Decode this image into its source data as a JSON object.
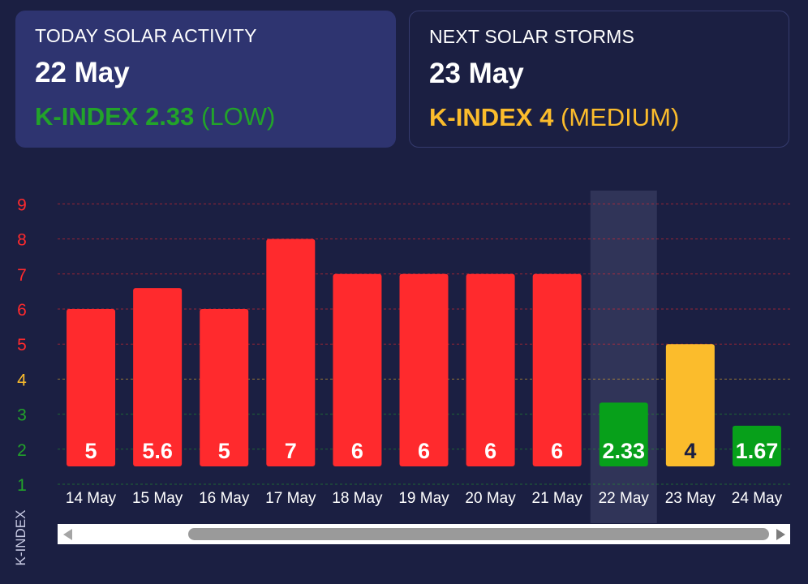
{
  "today": {
    "title": "TODAY SOLAR ACTIVITY",
    "date": "22 May",
    "kindex": "K-INDEX 2.33",
    "level": "(LOW)",
    "color": "#22a32a"
  },
  "next": {
    "title": "NEXT SOLAR STORMS",
    "date": "23 May",
    "kindex": "K-INDEX 4",
    "level": "(MEDIUM)",
    "color": "#fbbc2c"
  },
  "chart_data": {
    "type": "bar",
    "ylabel": "K-INDEX",
    "ylim": [
      1,
      9
    ],
    "yticks": [
      {
        "value": 9,
        "color": "#ff2a2d"
      },
      {
        "value": 8,
        "color": "#ff2a2d"
      },
      {
        "value": 7,
        "color": "#ff2a2d"
      },
      {
        "value": 6,
        "color": "#ff2a2d"
      },
      {
        "value": 5,
        "color": "#ff2a2d"
      },
      {
        "value": 4,
        "color": "#fbbc2c"
      },
      {
        "value": 3,
        "color": "#22a32a"
      },
      {
        "value": 2,
        "color": "#22a32a"
      },
      {
        "value": 1,
        "color": "#22a32a"
      }
    ],
    "categories": [
      "14 May",
      "15 May",
      "16 May",
      "17 May",
      "18 May",
      "19 May",
      "20 May",
      "21 May",
      "22 May",
      "23 May",
      "24 May"
    ],
    "values": [
      5,
      5.6,
      5,
      7,
      6,
      6,
      6,
      6,
      2.33,
      4,
      1.67
    ],
    "labels": [
      "5",
      "5.6",
      "5",
      "7",
      "6",
      "6",
      "6",
      "6",
      "2.33",
      "4",
      "1.67"
    ],
    "colors": [
      "#ff2a2d",
      "#ff2a2d",
      "#ff2a2d",
      "#ff2a2d",
      "#ff2a2d",
      "#ff2a2d",
      "#ff2a2d",
      "#ff2a2d",
      "#07a01a",
      "#fbbc2c",
      "#07a01a"
    ],
    "label_colors": [
      "#ffffff",
      "#ffffff",
      "#ffffff",
      "#ffffff",
      "#ffffff",
      "#ffffff",
      "#ffffff",
      "#ffffff",
      "#ffffff",
      "#1b1f42",
      "#ffffff"
    ],
    "highlight_index": 8,
    "grid": true
  },
  "scrollbar": {
    "visible": true
  }
}
